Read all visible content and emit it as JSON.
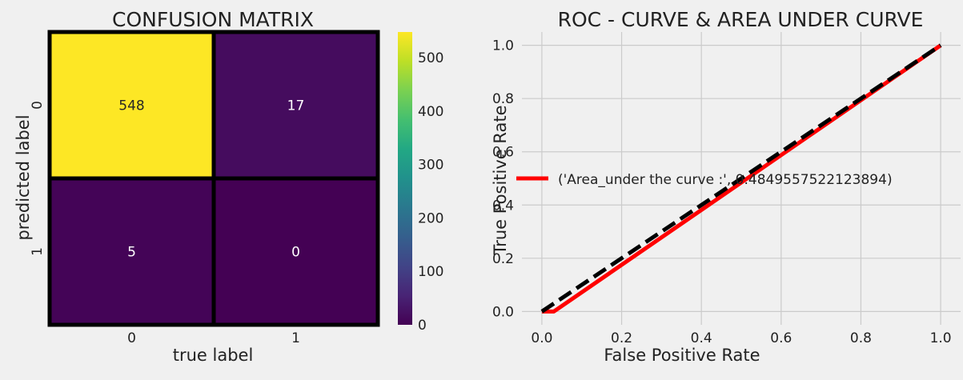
{
  "colors": {
    "background": "#f0f0f0",
    "grid": "#cbcbcb",
    "text": "#222222",
    "cell_high": "#fde725",
    "cell_mid": "#481668",
    "cell_low": "#440154",
    "roc_line": "#ff0000",
    "diagonal": "#000000",
    "colormap": "viridis"
  },
  "chart_data": [
    {
      "type": "heatmap",
      "title": "CONFUSION MATRIX",
      "xlabel": "true label",
      "ylabel": "predicted label",
      "x_categories": [
        "0",
        "1"
      ],
      "y_categories": [
        "0",
        "1"
      ],
      "values": [
        [
          548,
          17
        ],
        [
          5,
          0
        ]
      ],
      "value_labels": [
        [
          "548",
          "17"
        ],
        [
          "5",
          "0"
        ]
      ],
      "colorbar": {
        "min": 0,
        "max": 548,
        "ticks": [
          0,
          100,
          200,
          300,
          400,
          500
        ],
        "tick_labels": [
          "0",
          "100",
          "200",
          "300",
          "400",
          "500"
        ],
        "colormap": "viridis"
      }
    },
    {
      "type": "line",
      "title": "ROC - CURVE & AREA UNDER CURVE",
      "xlabel": "False Positive Rate",
      "ylabel": "True Positive Rate",
      "xlim": [
        -0.05,
        1.05
      ],
      "ylim": [
        -0.05,
        1.05
      ],
      "xticks": [
        0.0,
        0.2,
        0.4,
        0.6,
        0.8,
        1.0
      ],
      "xtick_labels": [
        "0.0",
        "0.2",
        "0.4",
        "0.6",
        "0.8",
        "1.0"
      ],
      "yticks": [
        0.0,
        0.2,
        0.4,
        0.6,
        0.8,
        1.0
      ],
      "ytick_labels": [
        "0.0",
        "0.2",
        "0.4",
        "0.6",
        "0.8",
        "1.0"
      ],
      "grid": true,
      "legend_placement": "center-right",
      "series": [
        {
          "name": "('Area_under the curve :', 0.4849557522123894)",
          "style": "solid",
          "x": [
            0.0,
            0.0301,
            1.0
          ],
          "y": [
            0.0,
            0.0,
            1.0
          ]
        },
        {
          "style": "dashed",
          "x": [
            0.0,
            1.0
          ],
          "y": [
            0.0,
            1.0
          ]
        }
      ]
    }
  ]
}
